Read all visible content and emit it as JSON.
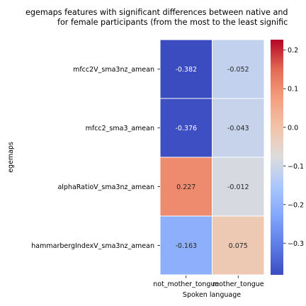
{
  "chart_data": {
    "type": "heatmap",
    "title_lines": [
      "egemaps features with significant differences between native and",
      "for female participants (from the most to the least signific"
    ],
    "xlabel": "Spoken language",
    "ylabel": "egemaps",
    "columns": [
      "not_mother_tongue",
      "mother_tongue"
    ],
    "rows": [
      "mfcc2V_sma3nz_amean",
      "mfcc2_sma3_amean",
      "alphaRatioV_sma3nz_amean",
      "hammarbergIndexV_sma3nz_amean"
    ],
    "values": [
      [
        -0.382,
        -0.052
      ],
      [
        -0.376,
        -0.043
      ],
      [
        0.227,
        -0.012
      ],
      [
        -0.163,
        0.075
      ]
    ],
    "colormap": "coolwarm",
    "vmin": -0.382,
    "vmax": 0.227,
    "center": 0,
    "colorbar_ticks": [
      -0.3,
      -0.2,
      -0.1,
      0.0,
      0.1,
      0.2
    ],
    "colorbar_tick_labels": [
      "−0.3",
      "−0.2",
      "−0.1",
      "0.0",
      "0.1",
      "0.2"
    ]
  }
}
